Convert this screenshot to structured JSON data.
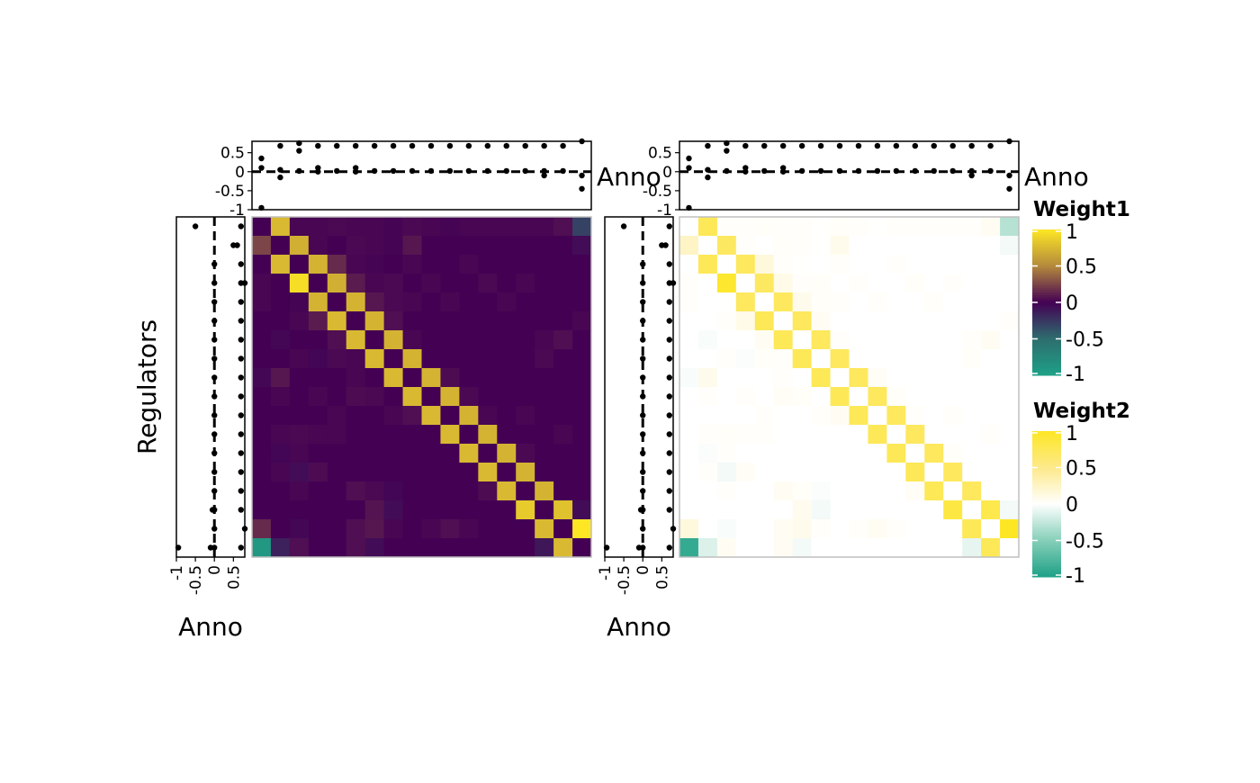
{
  "chart_data": {
    "type": "heatmap",
    "n": 18,
    "y_axis_title": "Regulators",
    "anno_axis_title": "Anno",
    "anno_ticks": [
      "-1",
      "-0.5",
      "0",
      "0.5"
    ],
    "anno_tick_values": [
      -1,
      -0.5,
      0,
      0.5
    ],
    "anno_xlim": [
      -1,
      0.8
    ],
    "anno_reference_line": 0,
    "top_anno": [
      [
        -0.95,
        0.1,
        0.35
      ],
      [
        -0.15,
        0.05,
        0.68
      ],
      [
        0.02,
        0.55,
        0.75
      ],
      [
        0.0,
        0.1,
        0.68
      ],
      [
        0.02,
        0.68
      ],
      [
        0.0,
        0.1,
        0.68
      ],
      [
        0.02,
        0.68
      ],
      [
        0.02,
        0.68
      ],
      [
        0.02,
        0.68
      ],
      [
        0.02,
        0.68
      ],
      [
        0.02,
        0.68
      ],
      [
        0.02,
        0.68
      ],
      [
        0.02,
        0.68
      ],
      [
        0.02,
        0.68
      ],
      [
        0.02,
        0.68
      ],
      [
        -0.1,
        0.02,
        0.68
      ],
      [
        0.02,
        0.68
      ],
      [
        -0.45,
        -0.1,
        0.8
      ]
    ],
    "left_anno": [
      [
        -0.5,
        0.7
      ],
      [
        0.5,
        0.6
      ],
      [
        0.0,
        0.7
      ],
      [
        0.0,
        0.7,
        0.8
      ],
      [
        0.0,
        0.7
      ],
      [
        0.0,
        0.7
      ],
      [
        0.0,
        0.7
      ],
      [
        0.0,
        0.7
      ],
      [
        0.0,
        0.7
      ],
      [
        0.0,
        0.7
      ],
      [
        0.0,
        0.7
      ],
      [
        0.0,
        0.7
      ],
      [
        0.0,
        0.7
      ],
      [
        0.0,
        0.7
      ],
      [
        0.0,
        0.7
      ],
      [
        -0.05,
        0.0,
        0.7
      ],
      [
        0.0,
        0.8
      ],
      [
        -0.95,
        -0.1,
        0.0,
        0.7
      ]
    ],
    "heatmaps": [
      {
        "name": "Weight1",
        "legend_title": "Weight1",
        "scale": "viridis-diverging",
        "values": [
          [
            0.0,
            0.75,
            0.02,
            0.02,
            0.03,
            0.02,
            0.02,
            0.01,
            0.03,
            0.02,
            0.01,
            0.02,
            0.02,
            0.02,
            0.02,
            0.02,
            0.05,
            -0.3
          ],
          [
            0.25,
            0.0,
            0.7,
            0.02,
            0.0,
            0.03,
            0.02,
            0.01,
            0.08,
            0.0,
            0.0,
            0.0,
            0.0,
            0.0,
            0.0,
            0.0,
            0.0,
            -0.05
          ],
          [
            0.0,
            0.75,
            0.0,
            0.72,
            0.15,
            0.02,
            0.01,
            0.0,
            0.02,
            0.0,
            0.0,
            0.02,
            0.0,
            0.0,
            0.0,
            0.0,
            0.0,
            0.0
          ],
          [
            0.02,
            0.0,
            0.95,
            0.0,
            0.7,
            0.1,
            0.02,
            0.03,
            0.0,
            0.02,
            0.0,
            0.0,
            0.03,
            0.0,
            0.02,
            0.0,
            0.0,
            0.0
          ],
          [
            0.02,
            0.0,
            0.01,
            0.72,
            0.0,
            0.72,
            0.08,
            0.03,
            0.02,
            0.0,
            0.02,
            0.0,
            0.0,
            0.02,
            0.0,
            0.0,
            0.0,
            0.0
          ],
          [
            0.0,
            0.0,
            0.02,
            0.1,
            0.75,
            0.0,
            0.72,
            0.05,
            0.0,
            0.0,
            0.0,
            0.0,
            0.0,
            0.0,
            0.0,
            0.0,
            0.0,
            0.02
          ],
          [
            0.0,
            -0.03,
            0.0,
            0.0,
            0.05,
            0.75,
            0.0,
            0.72,
            0.02,
            0.0,
            0.0,
            0.0,
            0.0,
            0.0,
            0.0,
            0.02,
            0.05,
            0.0
          ],
          [
            0.0,
            0.0,
            0.02,
            -0.02,
            0.03,
            0.02,
            0.75,
            0.0,
            0.72,
            0.0,
            0.0,
            0.0,
            0.0,
            0.0,
            0.0,
            0.03,
            0.0,
            0.0
          ],
          [
            -0.03,
            0.08,
            0.0,
            0.0,
            0.0,
            0.02,
            0.0,
            0.75,
            0.0,
            0.72,
            0.04,
            0.0,
            0.0,
            0.0,
            0.0,
            0.0,
            0.0,
            0.0
          ],
          [
            0.0,
            0.02,
            0.0,
            0.02,
            0.0,
            0.04,
            0.03,
            0.0,
            0.75,
            0.0,
            0.72,
            0.03,
            0.0,
            0.0,
            0.0,
            0.0,
            0.0,
            0.0
          ],
          [
            0.0,
            0.0,
            0.0,
            0.0,
            0.02,
            0.0,
            0.0,
            0.02,
            0.05,
            0.75,
            0.0,
            0.72,
            0.02,
            0.0,
            0.02,
            0.0,
            0.0,
            0.0
          ],
          [
            0.0,
            0.02,
            0.03,
            0.02,
            0.02,
            0.0,
            0.0,
            0.0,
            0.0,
            0.0,
            0.75,
            0.0,
            0.72,
            0.0,
            0.0,
            0.0,
            0.02,
            0.0
          ],
          [
            0.0,
            -0.02,
            0.02,
            0.0,
            0.0,
            0.0,
            0.0,
            0.0,
            0.0,
            0.0,
            0.0,
            0.75,
            0.0,
            0.72,
            0.03,
            0.0,
            0.0,
            0.0
          ],
          [
            0.0,
            0.02,
            -0.05,
            0.04,
            0.0,
            0.0,
            0.0,
            0.0,
            0.0,
            0.0,
            0.0,
            0.0,
            0.75,
            0.0,
            0.72,
            0.0,
            0.0,
            0.0
          ],
          [
            0.0,
            0.0,
            0.02,
            0.0,
            0.0,
            0.05,
            0.03,
            -0.02,
            0.0,
            0.0,
            0.0,
            0.0,
            0.04,
            0.75,
            0.0,
            0.72,
            0.0,
            0.0
          ],
          [
            0.0,
            0.0,
            0.0,
            0.0,
            0.0,
            0.0,
            0.07,
            -0.05,
            0.0,
            0.0,
            0.0,
            0.0,
            0.0,
            0.0,
            0.85,
            0.0,
            0.8,
            -0.05
          ],
          [
            0.15,
            0.0,
            -0.03,
            0.0,
            0.0,
            0.05,
            0.08,
            0.02,
            0.0,
            0.02,
            0.05,
            0.02,
            0.0,
            0.0,
            0.0,
            0.75,
            0.0,
            1.0
          ],
          [
            -0.9,
            -0.15,
            0.05,
            0.0,
            0.0,
            0.05,
            -0.05,
            0.0,
            0.0,
            0.0,
            0.0,
            0.0,
            0.0,
            0.0,
            0.0,
            -0.1,
            0.75,
            0.0
          ]
        ],
        "legend_ticks": [
          "1",
          "0.5",
          "0",
          "-0.5",
          "-1"
        ],
        "legend_tick_values": [
          1,
          0.5,
          0,
          -0.5,
          -1
        ]
      },
      {
        "name": "Weight2",
        "legend_title": "Weight2",
        "scale": "yellow-white-green",
        "values": "same_as_weight1",
        "legend_ticks": [
          "1",
          "0.5",
          "0",
          "-0.5",
          "-1"
        ],
        "legend_tick_values": [
          1,
          0.5,
          0,
          -0.5,
          -1
        ]
      }
    ],
    "colors": {
      "high": "#fde725",
      "mid_weight1": "#440154",
      "mid_weight2": "#ffffff",
      "low": "#1fa187",
      "border": "#bfbfbf"
    }
  }
}
